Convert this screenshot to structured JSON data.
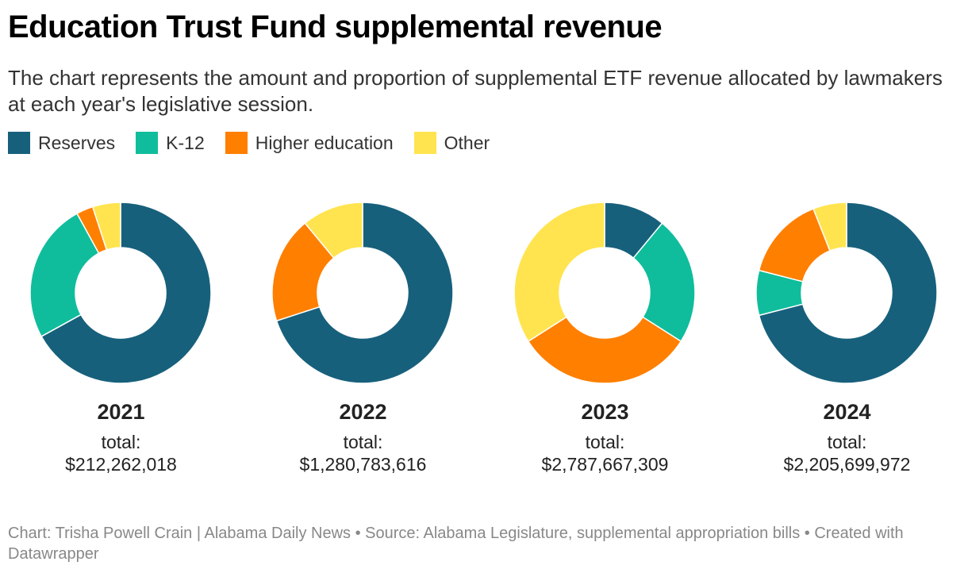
{
  "title": "Education Trust Fund supplemental revenue",
  "subtitle": "The chart represents the amount and proportion of supplemental ETF revenue allocated by lawmakers at each year's legislative session.",
  "legend": [
    {
      "label": "Reserves",
      "color": "#17607c"
    },
    {
      "label": "K-12",
      "color": "#0fbd9c"
    },
    {
      "label": "Higher education",
      "color": "#ff7f00"
    },
    {
      "label": "Other",
      "color": "#ffe44f"
    }
  ],
  "chart_data": {
    "type": "pie",
    "variant": "donut",
    "title": "Education Trust Fund supplemental revenue",
    "series_names": [
      "Reserves",
      "K-12",
      "Higher education",
      "Other"
    ],
    "colors": [
      "#17607c",
      "#0fbd9c",
      "#ff7f00",
      "#ffe44f"
    ],
    "unit": "percent of total (estimated from chart)",
    "charts": [
      {
        "year": "2021",
        "total_label": "total:",
        "total": "$212,262,018",
        "values": [
          67,
          25,
          3,
          5
        ]
      },
      {
        "year": "2022",
        "total_label": "total:",
        "total": "$1,280,783,616",
        "values": [
          70,
          0,
          19,
          11
        ]
      },
      {
        "year": "2023",
        "total_label": "total:",
        "total": "$2,787,667,309",
        "values": [
          11,
          23,
          32,
          34
        ]
      },
      {
        "year": "2024",
        "total_label": "total:",
        "total": "$2,205,699,972",
        "values": [
          71,
          8,
          15,
          6
        ]
      }
    ]
  },
  "footer": "Chart: Trisha Powell Crain | Alabama Daily News • Source: Alabama Legislature, supplemental appropriation bills • Created with Datawrapper"
}
